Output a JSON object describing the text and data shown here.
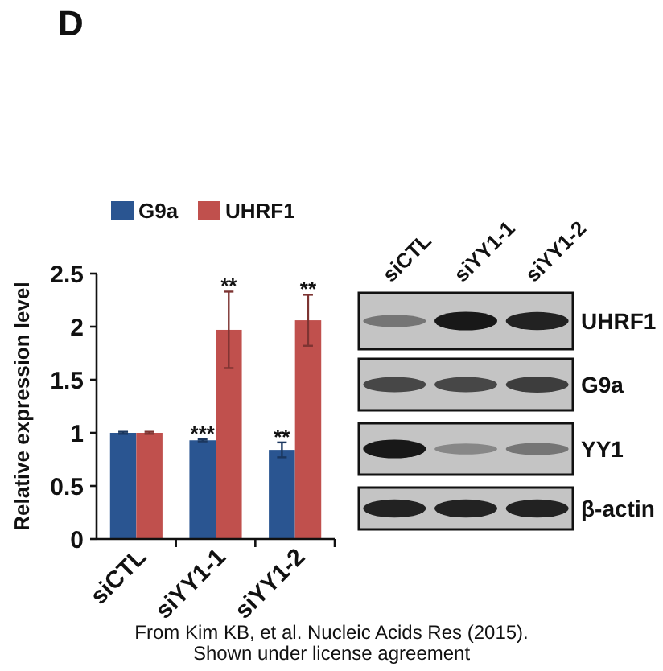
{
  "chart_data": {
    "type": "bar",
    "ylabel": "Relative expression level",
    "categories": [
      "siCTL",
      "siYY1-1",
      "siYY1-2"
    ],
    "series": [
      {
        "name": "G9a",
        "color": "#2a5591",
        "values": [
          1.0,
          0.93,
          0.84
        ],
        "errors": [
          0.01,
          0.01,
          0.07
        ]
      },
      {
        "name": "UHRF1",
        "color": "#c0504d",
        "values": [
          1.0,
          1.97,
          2.06
        ],
        "errors": [
          0.01,
          0.36,
          0.24
        ]
      }
    ],
    "ylim": [
      0,
      2.5
    ],
    "yticks": [
      0,
      0.5,
      1,
      1.5,
      2,
      2.5
    ],
    "legend": "top",
    "annotations": [
      "D",
      {
        "text": "***",
        "x": "siYY1-1",
        "y": 0.94
      },
      {
        "text": "**",
        "x": "siYY1-1",
        "y": 2.33
      },
      {
        "text": "**",
        "x": "siYY1-2",
        "y": 0.91
      },
      {
        "text": "**",
        "x": "siYY1-2",
        "y": 2.3
      },
      "siCTL",
      "siYY1-1",
      "siYY1-2",
      "UHRF1",
      "G9a",
      "YY1",
      "β-actin",
      "From Kim KB, et al. Nucleic Acids Res (2015).",
      "Shown under license agreement"
    ]
  }
}
